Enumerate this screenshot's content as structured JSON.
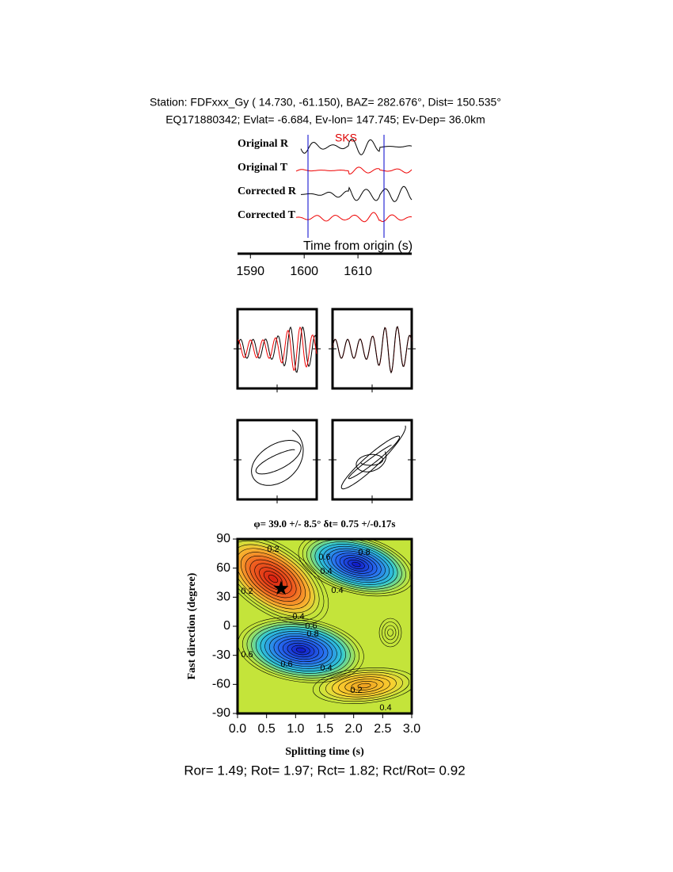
{
  "header": {
    "station": "Station: FDFxxx_Gy (  14.730,  -61.150), BAZ=  282.676°, Dist=  150.535°",
    "event": "EQ171880342; Evlat=  -6.684, Ev-lon= 147.745; Ev-Dep= 36.0km"
  },
  "traces": {
    "labels": [
      "Original R",
      "Original T",
      "Corrected R",
      "Corrected T"
    ],
    "phase": "SKS",
    "xlabel": "Time from origin (s)",
    "xlim": [
      1587.6,
      1620
    ],
    "xticks": [
      1590,
      1600,
      1610
    ]
  },
  "grid_search": {
    "title": "φ= 39.0 +/- 8.5° δt= 0.75 +/-0.17s",
    "xlabel": "Splitting time (s)",
    "ylabel": "Fast direction (degree)",
    "xlim": [
      0,
      3
    ],
    "ylim": [
      -90,
      90
    ],
    "xticks": [
      {
        "value": 0,
        "label": "0.0"
      },
      0.5,
      {
        "value": 1,
        "label": "1.0"
      },
      1.5,
      {
        "value": 2,
        "label": "2.0"
      },
      2.5,
      {
        "value": 3,
        "label": "3.0"
      }
    ],
    "yticks": [
      -90,
      -60,
      -30,
      0,
      30,
      60,
      90
    ],
    "best": {
      "dt": 0.75,
      "phi": 39.0
    },
    "contour_labels": [
      "0.2",
      "0.2",
      "0.4",
      "0.4",
      "0.6",
      "0.8",
      "0.4",
      "0.6",
      "0.8",
      "0.6",
      "0.6",
      "0.4",
      "0.2",
      "0.4"
    ]
  },
  "footer": "Ror= 1.49; Rot= 1.97; Rct= 1.82; Rct/Rot= 0.92"
}
